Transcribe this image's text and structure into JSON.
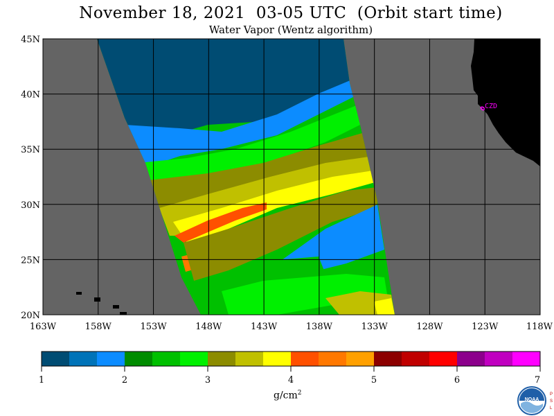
{
  "title": "November 18, 2021  03-05 UTC  (Orbit start time)",
  "subtitle": "Water Vapor (Wentz algorithm)",
  "map": {
    "lat_labels": [
      "45N",
      "40N",
      "35N",
      "30N",
      "25N",
      "20N"
    ],
    "lon_labels": [
      "163W",
      "158W",
      "153W",
      "148W",
      "143W",
      "138W",
      "133W",
      "128W",
      "123W",
      "118W"
    ],
    "lat_range": [
      20,
      45
    ],
    "lon_range": [
      -163,
      -118
    ],
    "station_label": "CZD",
    "colors": {
      "ocean": "#646464",
      "land": "#000000",
      "grid": "#000000",
      "station": "#ff00ff"
    }
  },
  "colorbar": {
    "tick_labels": [
      "1",
      "2",
      "3",
      "4",
      "5",
      "6",
      "7"
    ],
    "unit_base": "g/cm",
    "unit_exp": "2",
    "colors": [
      "#004c73",
      "#0073b8",
      "#0c8cff",
      "#008c00",
      "#00c000",
      "#00f000",
      "#8c8c00",
      "#c0c000",
      "#ffff00",
      "#ff5000",
      "#ff7800",
      "#ffa000",
      "#8c0000",
      "#c00000",
      "#ff0000",
      "#8c008c",
      "#c000c0",
      "#ff00ff"
    ]
  },
  "logo": {
    "text": "NOAA",
    "side_text": "PSL"
  }
}
